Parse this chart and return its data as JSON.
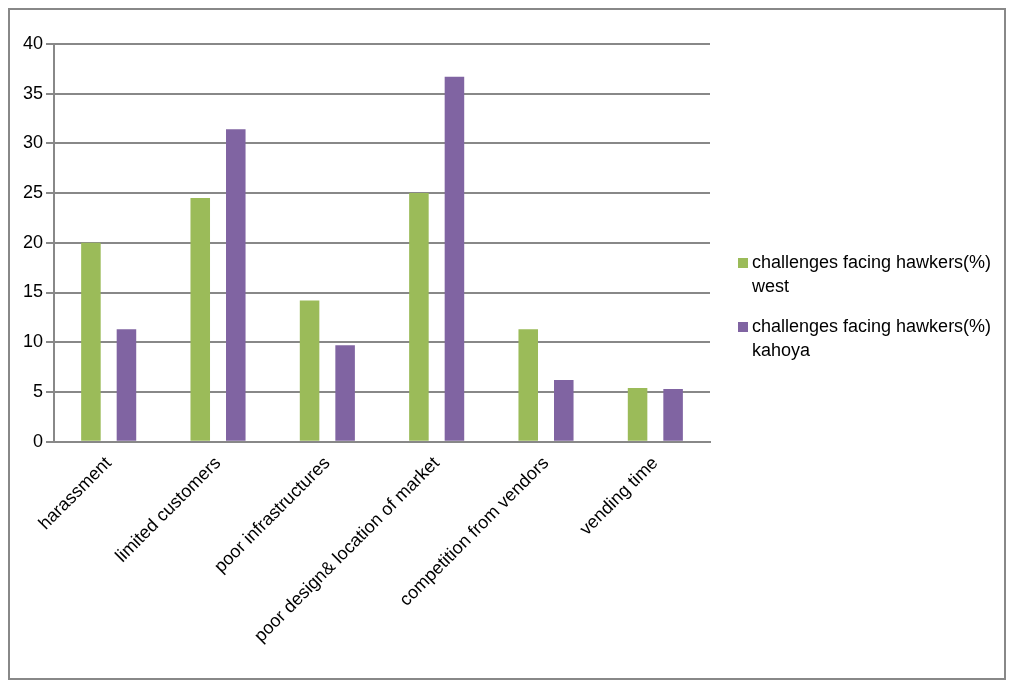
{
  "chart_data": {
    "type": "bar",
    "categories": [
      "harassment",
      "limited customers",
      "poor infrastructures",
      "poor design& location of market",
      "competition from vendors",
      "vending time"
    ],
    "series": [
      {
        "name": "challenges facing hawkers(%) west",
        "color": "#9bbb59",
        "values": [
          20,
          24.5,
          14.2,
          25,
          11.3,
          5.4
        ]
      },
      {
        "name": "challenges facing hawkers(%) kahoya",
        "color": "#8064a2",
        "values": [
          11.3,
          31.4,
          9.7,
          36.7,
          6.2,
          5.3
        ]
      }
    ],
    "ylim": [
      0,
      40
    ],
    "yticks": [
      0,
      5,
      10,
      15,
      20,
      25,
      30,
      35,
      40
    ],
    "grid": "y",
    "legend": "right"
  }
}
